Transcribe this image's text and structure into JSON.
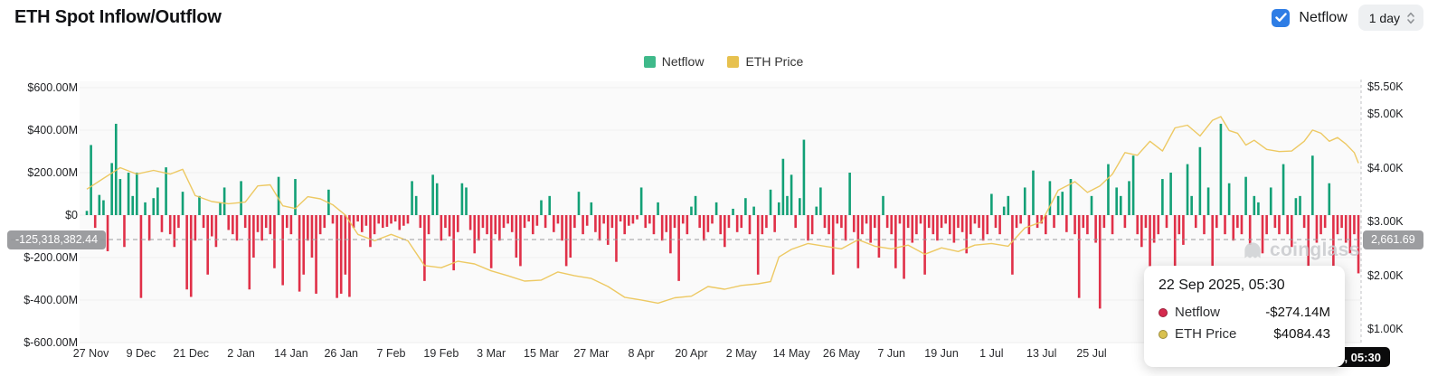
{
  "header": {
    "title": "ETH Spot Inflow/Outflow",
    "netflow_toggle_label": "Netflow",
    "netflow_toggle_checked": true,
    "interval_value": "1 day"
  },
  "legend": [
    {
      "label": "Netflow",
      "color": "#3fb98a"
    },
    {
      "label": "ETH Price",
      "color": "#e7c14f"
    }
  ],
  "axes": {
    "left_ticks": [
      {
        "label": "$600.00M",
        "value": 600
      },
      {
        "label": "$400.00M",
        "value": 400
      },
      {
        "label": "$200.00M",
        "value": 200
      },
      {
        "label": "$0",
        "value": 0
      },
      {
        "label": "$-200.00M",
        "value": -200
      },
      {
        "label": "$-400.00M",
        "value": -400
      },
      {
        "label": "$-600.00M",
        "value": -600
      }
    ],
    "right_ticks": [
      {
        "label": "$5.50K",
        "value": 5500
      },
      {
        "label": "$5.00K",
        "value": 5000
      },
      {
        "label": "$4.00K",
        "value": 4000
      },
      {
        "label": "$3.00K",
        "value": 3000
      },
      {
        "label": "$2.00K",
        "value": 2000
      },
      {
        "label": "$1.00K",
        "value": 1000
      }
    ],
    "x_ticks": [
      {
        "label": "27 Nov",
        "day": 1
      },
      {
        "label": "9 Dec",
        "day": 13
      },
      {
        "label": "21 Dec",
        "day": 25
      },
      {
        "label": "2 Jan",
        "day": 37
      },
      {
        "label": "14 Jan",
        "day": 49
      },
      {
        "label": "26 Jan",
        "day": 61
      },
      {
        "label": "7 Feb",
        "day": 73
      },
      {
        "label": "19 Feb",
        "day": 85
      },
      {
        "label": "3 Mar",
        "day": 97
      },
      {
        "label": "15 Mar",
        "day": 109
      },
      {
        "label": "27 Mar",
        "day": 121
      },
      {
        "label": "8 Apr",
        "day": 133
      },
      {
        "label": "20 Apr",
        "day": 145
      },
      {
        "label": "2 May",
        "day": 157
      },
      {
        "label": "14 May",
        "day": 169
      },
      {
        "label": "26 May",
        "day": 181
      },
      {
        "label": "7 Jun",
        "day": 193
      },
      {
        "label": "19 Jun",
        "day": 205
      },
      {
        "label": "1 Jul",
        "day": 217
      },
      {
        "label": "13 Jul",
        "day": 229
      },
      {
        "label": "25 Jul",
        "day": 241
      }
    ]
  },
  "marker_line": {
    "left_label": "-125,318,382.44",
    "right_label": "2,661.69",
    "netflow_value": -125318382.44,
    "price_value": 2661.69
  },
  "tooltip": {
    "date": "22 Sep 2025, 05:30",
    "rows": [
      {
        "label": "Netflow",
        "value": "-$274.14M",
        "color": "#d52a4e"
      },
      {
        "label": "ETH Price",
        "value": "$4084.43",
        "color": "#d9c14f"
      }
    ]
  },
  "crosshair_date_label": "22 Sep 2025, 05:30",
  "watermark_text": "coinglass",
  "chart_data": {
    "type": "bar+line",
    "title": "ETH Spot Inflow/Outflow",
    "interval": "1 day",
    "start_date": "27 Nov 2024",
    "end_date": "22 Sep 2025",
    "legend": [
      "Netflow",
      "ETH Price"
    ],
    "legend_position": "top-center",
    "grid": false,
    "ylim_left_musd": [
      -600,
      600
    ],
    "ylim_right_usd": [
      600,
      5700
    ],
    "colors": {
      "inflow": "#12a076",
      "outflow": "#e03048",
      "price": "#ecc65b"
    },
    "netflow_series": {
      "name": "Netflow",
      "units": "USD millions, estimated from chart; one value per day",
      "values_musd": [
        20,
        330,
        -60,
        95,
        70,
        -170,
        245,
        430,
        170,
        -150,
        200,
        90,
        200,
        -390,
        60,
        -120,
        80,
        130,
        -80,
        225,
        -90,
        -150,
        -60,
        110,
        -350,
        -385,
        -120,
        90,
        -60,
        -280,
        -100,
        -150,
        60,
        130,
        -70,
        -90,
        -120,
        160,
        -60,
        -350,
        -200,
        -80,
        -120,
        -60,
        -90,
        -250,
        180,
        -330,
        -60,
        -90,
        170,
        -360,
        -280,
        -120,
        -200,
        -370,
        -90,
        -60,
        120,
        -40,
        -390,
        -370,
        -280,
        -385,
        -60,
        -30,
        -80,
        -50,
        -150,
        -90,
        -40,
        -60,
        -55,
        -40,
        -30,
        -70,
        -50,
        -40,
        160,
        90,
        -60,
        -310,
        -90,
        190,
        150,
        -120,
        -60,
        -100,
        -260,
        -80,
        150,
        130,
        -70,
        -180,
        -120,
        -60,
        -90,
        -250,
        -90,
        -120,
        -60,
        -40,
        -80,
        -200,
        -240,
        -60,
        -30,
        -90,
        -50,
        70,
        -60,
        90,
        -80,
        -40,
        -120,
        -240,
        -200,
        -60,
        110,
        -90,
        -50,
        60,
        -80,
        -120,
        -40,
        -140,
        -60,
        -220,
        -30,
        -90,
        -50,
        -40,
        -20,
        130,
        -60,
        -40,
        -90,
        60,
        -120,
        -80,
        -180,
        -60,
        -310,
        -40,
        -90,
        40,
        90,
        -60,
        -120,
        -80,
        -40,
        60,
        -90,
        -150,
        -60,
        30,
        -80,
        -60,
        80,
        -90,
        40,
        -280,
        -90,
        -60,
        120,
        -80,
        60,
        265,
        90,
        190,
        -60,
        80,
        355,
        -120,
        -90,
        40,
        130,
        -60,
        -90,
        -280,
        -40,
        -60,
        -120,
        200,
        -80,
        -250,
        -90,
        -40,
        -130,
        -60,
        -200,
        90,
        -60,
        -90,
        -250,
        -40,
        -300,
        -60,
        -130,
        -90,
        -40,
        -280,
        -60,
        -90,
        -120,
        -60,
        -40,
        -90,
        -130,
        -60,
        -80,
        -180,
        -90,
        -40,
        -60,
        -120,
        -90,
        100,
        -60,
        -90,
        40,
        90,
        -280,
        -60,
        -40,
        130,
        -90,
        210,
        -60,
        -40,
        -90,
        160,
        -60,
        90,
        110,
        -80,
        170,
        -90,
        -390,
        -60,
        -90,
        90,
        -130,
        -440,
        -60,
        240,
        -90,
        130,
        90,
        -60,
        160,
        280,
        -90,
        -150,
        -60,
        -240,
        -130,
        -90,
        170,
        -60,
        200,
        -330,
        -90,
        -140,
        240,
        90,
        -60,
        320,
        -90,
        130,
        -260,
        -60,
        430,
        -90,
        150,
        -120,
        -60,
        -90,
        180,
        -140,
        90,
        60,
        -180,
        -90,
        130,
        -60,
        -90,
        240,
        -90,
        -150,
        80,
        90,
        -60,
        -340,
        280,
        -130,
        -90,
        -60,
        150,
        -280,
        -90,
        -60,
        -130,
        -180,
        -90,
        -274.14
      ]
    },
    "price_series": {
      "name": "ETH Price",
      "units": "USD, [day_index, price] estimated from chart",
      "points": [
        [
          0,
          3600
        ],
        [
          4,
          3800
        ],
        [
          8,
          4000
        ],
        [
          12,
          3880
        ],
        [
          16,
          3950
        ],
        [
          20,
          3880
        ],
        [
          23,
          3970
        ],
        [
          26,
          3480
        ],
        [
          30,
          3370
        ],
        [
          34,
          3330
        ],
        [
          38,
          3360
        ],
        [
          41,
          3660
        ],
        [
          44,
          3680
        ],
        [
          47,
          3290
        ],
        [
          50,
          3240
        ],
        [
          53,
          3460
        ],
        [
          56,
          3420
        ],
        [
          59,
          3310
        ],
        [
          62,
          3120
        ],
        [
          65,
          2760
        ],
        [
          69,
          2640
        ],
        [
          73,
          2760
        ],
        [
          77,
          2640
        ],
        [
          81,
          2180
        ],
        [
          85,
          2140
        ],
        [
          89,
          2260
        ],
        [
          93,
          2210
        ],
        [
          97,
          2080
        ],
        [
          101,
          1990
        ],
        [
          105,
          1890
        ],
        [
          109,
          1910
        ],
        [
          113,
          2060
        ],
        [
          117,
          1990
        ],
        [
          121,
          1940
        ],
        [
          125,
          1790
        ],
        [
          129,
          1590
        ],
        [
          133,
          1540
        ],
        [
          137,
          1480
        ],
        [
          141,
          1580
        ],
        [
          145,
          1610
        ],
        [
          149,
          1790
        ],
        [
          153,
          1740
        ],
        [
          157,
          1810
        ],
        [
          161,
          1840
        ],
        [
          164,
          1880
        ],
        [
          166,
          2340
        ],
        [
          169,
          2480
        ],
        [
          173,
          2590
        ],
        [
          177,
          2540
        ],
        [
          181,
          2490
        ],
        [
          185,
          2660
        ],
        [
          189,
          2540
        ],
        [
          193,
          2490
        ],
        [
          197,
          2560
        ],
        [
          201,
          2390
        ],
        [
          205,
          2510
        ],
        [
          209,
          2440
        ],
        [
          213,
          2560
        ],
        [
          217,
          2590
        ],
        [
          221,
          2540
        ],
        [
          225,
          2880
        ],
        [
          229,
          2990
        ],
        [
          233,
          3580
        ],
        [
          237,
          3740
        ],
        [
          240,
          3540
        ],
        [
          243,
          3660
        ],
        [
          246,
          3880
        ],
        [
          249,
          4280
        ],
        [
          252,
          4230
        ],
        [
          255,
          4490
        ],
        [
          258,
          4310
        ],
        [
          261,
          4740
        ],
        [
          264,
          4790
        ],
        [
          267,
          4590
        ],
        [
          270,
          4880
        ],
        [
          272,
          4950
        ],
        [
          274,
          4690
        ],
        [
          276,
          4640
        ],
        [
          278,
          4420
        ],
        [
          280,
          4510
        ],
        [
          283,
          4340
        ],
        [
          286,
          4300
        ],
        [
          289,
          4310
        ],
        [
          292,
          4490
        ],
        [
          294,
          4700
        ],
        [
          296,
          4640
        ],
        [
          298,
          4490
        ],
        [
          300,
          4560
        ],
        [
          302,
          4440
        ],
        [
          304,
          4280
        ],
        [
          305,
          4084
        ]
      ]
    },
    "marker_line": {
      "netflow": -125318382.44,
      "eth_price": 2661.69
    },
    "last_point": {
      "date": "22 Sep 2025, 05:30",
      "netflow": "-$274.14M",
      "eth_price": 4084.43
    }
  }
}
